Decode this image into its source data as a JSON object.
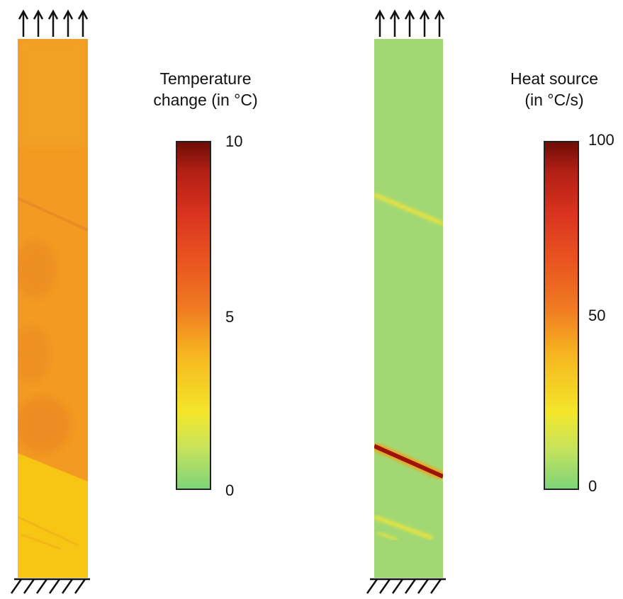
{
  "panels": [
    {
      "title_line1": "Temperature",
      "title_line2": "change (in °C)",
      "ticks": [
        "10",
        "5",
        "0"
      ],
      "colorbar_range": [
        0,
        10
      ]
    },
    {
      "title_line1": "Heat source",
      "title_line2": "(in °C/s)",
      "ticks": [
        "100",
        "50",
        "0"
      ],
      "colorbar_range": [
        0,
        100
      ]
    }
  ],
  "colors": {
    "low": "#7fd47a",
    "mid": "#f6b820",
    "high": "#6e0d07",
    "temp_field": "#ee9322",
    "temp_lower": "#f7c615",
    "heat_field": "#a0d872",
    "band_hot": "#9a1408"
  }
}
